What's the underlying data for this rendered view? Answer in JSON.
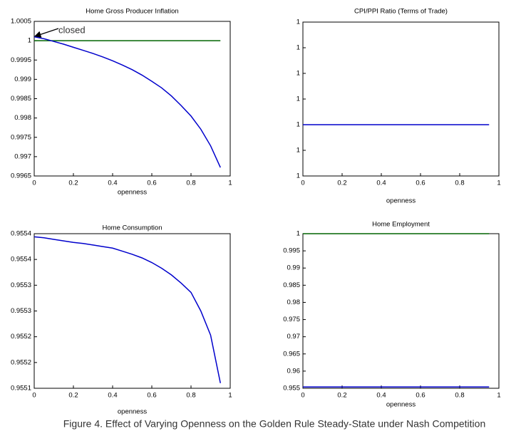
{
  "chart_data": [
    {
      "type": "line",
      "title": "Home Gross Producer Inflation",
      "x_label": "openness",
      "x": [
        0,
        0.05,
        0.1,
        0.15,
        0.2,
        0.25,
        0.3,
        0.35,
        0.4,
        0.45,
        0.5,
        0.55,
        0.6,
        0.65,
        0.7,
        0.75,
        0.8,
        0.85,
        0.9,
        0.95
      ],
      "series": [
        {
          "color": "#006400",
          "values": [
            1,
            1,
            1,
            1,
            1,
            1,
            1,
            1,
            1,
            1,
            1,
            1,
            1,
            1,
            1,
            1,
            1,
            1,
            1,
            1
          ]
        },
        {
          "color": "#0000cc",
          "values": [
            1.0001,
            1.00005,
            0.99998,
            0.99991,
            0.99983,
            0.99975,
            0.99967,
            0.99958,
            0.99948,
            0.99937,
            0.99925,
            0.99911,
            0.99895,
            0.99878,
            0.99857,
            0.99832,
            0.99805,
            0.99771,
            0.99728,
            0.99672
          ]
        }
      ],
      "xlim": [
        0,
        1
      ],
      "xticks": [
        0,
        0.2,
        0.4,
        0.6,
        0.8,
        1
      ],
      "ylim": [
        0.9965,
        1.0005
      ],
      "yticks": [
        0.9965,
        0.997,
        0.9975,
        0.998,
        0.9985,
        0.999,
        0.9995,
        1,
        1.0005
      ],
      "grid": false,
      "annotation": "closed"
    },
    {
      "type": "line",
      "title": "CPI/PPI Ratio (Terms of Trade)",
      "x_label": "openness",
      "x": [
        0,
        0.05,
        0.1,
        0.15,
        0.2,
        0.25,
        0.3,
        0.35,
        0.4,
        0.45,
        0.5,
        0.55,
        0.6,
        0.65,
        0.7,
        0.75,
        0.8,
        0.85,
        0.9,
        0.95
      ],
      "series": [
        {
          "color": "#0000cc",
          "values": [
            0.9999999,
            0.9999999,
            0.9999999,
            0.9999999,
            0.9999999,
            0.9999999,
            0.9999999,
            0.9999999,
            0.9999999,
            0.9999999,
            0.9999999,
            0.9999999,
            0.9999999,
            0.9999999,
            0.9999999,
            0.9999999,
            0.9999999,
            0.9999999,
            0.9999999,
            0.9999999
          ]
        }
      ],
      "xlim": [
        0,
        1
      ],
      "xticks": [
        0,
        0.2,
        0.4,
        0.6,
        0.8,
        1
      ],
      "ylim": [
        0.9999997,
        1.0000003
      ],
      "yticks": [
        {
          "value": 0.9999997,
          "label": "1"
        },
        {
          "value": 0.9999998,
          "label": "1"
        },
        {
          "value": 0.9999999,
          "label": "1"
        },
        {
          "value": 1,
          "label": "1"
        },
        {
          "value": 1.0000001,
          "label": "1"
        },
        {
          "value": 1.0000002,
          "label": "1"
        },
        {
          "value": 1.0000003,
          "label": "1"
        }
      ],
      "grid": false
    },
    {
      "type": "line",
      "title": "Home Consumption",
      "x_label": "openness",
      "x": [
        0,
        0.05,
        0.1,
        0.15,
        0.2,
        0.25,
        0.3,
        0.35,
        0.4,
        0.45,
        0.5,
        0.55,
        0.6,
        0.65,
        0.7,
        0.75,
        0.8,
        0.85,
        0.9,
        0.95
      ],
      "series": [
        {
          "color": "#0000cc",
          "values": [
            0.955394,
            0.955392,
            0.955389,
            0.955386,
            0.955383,
            0.955381,
            0.955378,
            0.955375,
            0.955372,
            0.955366,
            0.95536,
            0.955353,
            0.955344,
            0.955333,
            0.95532,
            0.955304,
            0.955286,
            0.95525,
            0.955203,
            0.95511
          ]
        }
      ],
      "xlim": [
        0,
        1
      ],
      "xticks": [
        0,
        0.2,
        0.4,
        0.6,
        0.8,
        1
      ],
      "ylim": [
        0.9551,
        0.9554
      ],
      "yticks": [
        {
          "value": 0.9551,
          "label": "0.9551"
        },
        {
          "value": 0.95515,
          "label": "0.9552"
        },
        {
          "value": 0.9552,
          "label": "0.9552"
        },
        {
          "value": 0.95525,
          "label": "0.9553"
        },
        {
          "value": 0.9553,
          "label": "0.9553"
        },
        {
          "value": 0.95535,
          "label": "0.9554"
        },
        {
          "value": 0.9554,
          "label": "0.9554"
        }
      ],
      "grid": false
    },
    {
      "type": "line",
      "title": "Home Employment",
      "x_label": "openness",
      "x": [
        0,
        0.05,
        0.1,
        0.15,
        0.2,
        0.25,
        0.3,
        0.35,
        0.4,
        0.45,
        0.5,
        0.55,
        0.6,
        0.65,
        0.7,
        0.75,
        0.8,
        0.85,
        0.9,
        0.95
      ],
      "series": [
        {
          "color": "#006400",
          "values": [
            1,
            1,
            1,
            1,
            1,
            1,
            1,
            1,
            1,
            1,
            1,
            1,
            1,
            1,
            1,
            1,
            1,
            1,
            1,
            1
          ]
        },
        {
          "color": "#0000cc",
          "values": [
            0.9554,
            0.9554,
            0.9554,
            0.9554,
            0.9554,
            0.9554,
            0.9554,
            0.9554,
            0.9554,
            0.9554,
            0.9554,
            0.9554,
            0.9554,
            0.9554,
            0.9554,
            0.9554,
            0.9554,
            0.9554,
            0.9554,
            0.9554
          ]
        }
      ],
      "xlim": [
        0,
        1
      ],
      "xticks": [
        0,
        0.2,
        0.4,
        0.6,
        0.8,
        1
      ],
      "ylim": [
        0.955,
        1
      ],
      "yticks": [
        0.955,
        0.96,
        0.965,
        0.97,
        0.975,
        0.98,
        0.985,
        0.99,
        0.995,
        1
      ],
      "grid": false
    }
  ],
  "caption": "Figure 4. Effect of Varying Openness on the Golden Rule Steady-State under Nash Competition"
}
